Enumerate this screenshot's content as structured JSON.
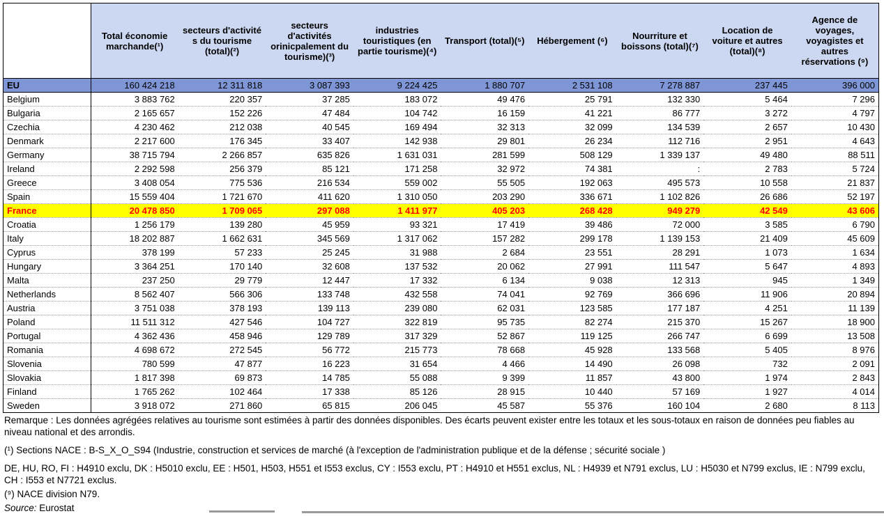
{
  "colors": {
    "header_bg": "#ccd8f1",
    "eu_row_bg": "#7e96d6",
    "highlight_bg": "#ffff00",
    "highlight_text": "#ff0000",
    "table_border": "#000000",
    "row_separator": "#9a9a9a",
    "bottom_bar": "#9a9a9a"
  },
  "table": {
    "corner_label": "",
    "columns": [
      "Total économie marchande(¹)",
      "secteurs d'activité s du tourisme (total)(²)",
      "secteurs d'activités orinicpalement du tourisme)(³)",
      "industries touristiques (en partie tourisme)(⁴)",
      "Transport (total)(⁵)",
      "Hébergement (⁶)",
      "Nourriture et boissons (total)(⁷)",
      "Location de voiture et autres (total)(⁸)",
      "Agence de voyages, voyagistes et autres réservations (⁹)"
    ],
    "rows": [
      {
        "name": "EU",
        "style": "eu",
        "values": [
          "160 424 218",
          "12 311 818",
          "3 087 393",
          "9 224 425",
          "1 880 707",
          "2 531 108",
          "7 278 887",
          "237 445",
          "396 000"
        ]
      },
      {
        "name": "Belgium",
        "values": [
          "3 883 762",
          "220 357",
          "37 285",
          "183 072",
          "49 476",
          "25 791",
          "132 330",
          "5 464",
          "7 296"
        ]
      },
      {
        "name": "Bulgaria",
        "values": [
          "2 165 657",
          "152 226",
          "47 484",
          "104 742",
          "16 159",
          "41 221",
          "86 777",
          "3 272",
          "4 797"
        ]
      },
      {
        "name": "Czechia",
        "values": [
          "4 230 462",
          "212 038",
          "40 545",
          "169 494",
          "32 313",
          "32 099",
          "134 539",
          "2 657",
          "10 430"
        ]
      },
      {
        "name": "Denmark",
        "values": [
          "2 217 600",
          "176 345",
          "33 407",
          "142 938",
          "29 801",
          "26 234",
          "112 716",
          "2 951",
          "4 643"
        ]
      },
      {
        "name": "Germany",
        "values": [
          "38 715 794",
          "2 266 857",
          "635 826",
          "1 631 031",
          "281 599",
          "508 129",
          "1 339 137",
          "49 480",
          "88 511"
        ]
      },
      {
        "name": "Ireland",
        "values": [
          "2 292 598",
          "256 379",
          "85 121",
          "171 258",
          "32 972",
          "74 381",
          ":",
          "2 783",
          "5 724"
        ]
      },
      {
        "name": "Greece",
        "values": [
          "3 408 054",
          "775 536",
          "216 534",
          "559 002",
          "55 505",
          "192 063",
          "495 573",
          "10 558",
          "21 837"
        ]
      },
      {
        "name": "Spain",
        "values": [
          "15 559 404",
          "1 721 670",
          "411 620",
          "1 310 050",
          "203 290",
          "336 671",
          "1 102 826",
          "26 686",
          "52 197"
        ]
      },
      {
        "name": "France",
        "style": "highlight",
        "values": [
          "20 478 850",
          "1 709 065",
          "297 088",
          "1 411 977",
          "405 203",
          "268 428",
          "949 279",
          "42 549",
          "43 606"
        ]
      },
      {
        "name": "Croatia",
        "values": [
          "1 256 179",
          "139 280",
          "45 959",
          "93 321",
          "17 419",
          "39 486",
          "72 000",
          "3 585",
          "6 790"
        ]
      },
      {
        "name": "Italy",
        "values": [
          "18 202 887",
          "1 662 631",
          "345 569",
          "1 317 062",
          "157 282",
          "299 178",
          "1 139 153",
          "21 409",
          "45 609"
        ]
      },
      {
        "name": "Cyprus",
        "values": [
          "378 199",
          "57 233",
          "25 245",
          "31 988",
          "2 684",
          "23 551",
          "28 291",
          "1 073",
          "1 634"
        ]
      },
      {
        "name": "Hungary",
        "values": [
          "3 364 251",
          "170 140",
          "32 608",
          "137 532",
          "20 062",
          "27 991",
          "111 547",
          "5 647",
          "4 893"
        ]
      },
      {
        "name": "Malta",
        "values": [
          "237 250",
          "29 779",
          "12 447",
          "17 332",
          "6 134",
          "9 038",
          "12 313",
          "945",
          "1 349"
        ]
      },
      {
        "name": "Netherlands",
        "values": [
          "8 562 407",
          "566 306",
          "133 748",
          "432 558",
          "74 041",
          "92 769",
          "366 696",
          "11 906",
          "20 894"
        ]
      },
      {
        "name": "Austria",
        "values": [
          "3 751 038",
          "378 193",
          "139 113",
          "239 080",
          "62 031",
          "123 585",
          "177 187",
          "4 251",
          "11 139"
        ]
      },
      {
        "name": "Poland",
        "values": [
          "11 511 312",
          "427 546",
          "104 727",
          "322 819",
          "95 735",
          "82 274",
          "215 370",
          "15 267",
          "18 900"
        ]
      },
      {
        "name": "Portugal",
        "values": [
          "4 362 436",
          "458 946",
          "129 789",
          "317 329",
          "52 867",
          "119 125",
          "266 747",
          "6 699",
          "13 508"
        ]
      },
      {
        "name": "Romania",
        "values": [
          "4 698 672",
          "272 545",
          "56 772",
          "215 773",
          "78 668",
          "45 928",
          "133 568",
          "5 405",
          "8 976"
        ]
      },
      {
        "name": "Slovenia",
        "values": [
          "780 599",
          "47 877",
          "16 223",
          "31 654",
          "4 466",
          "14 490",
          "26 098",
          "732",
          "2 091"
        ]
      },
      {
        "name": "Slovakia",
        "values": [
          "1 817 398",
          "69 873",
          "14 785",
          "55 088",
          "9 399",
          "11 857",
          "43 800",
          "1 974",
          "2 843"
        ]
      },
      {
        "name": "Finland",
        "values": [
          "1 765 262",
          "102 464",
          "17 338",
          "85 126",
          "28 915",
          "10 440",
          "57 169",
          "1 927",
          "4 014"
        ]
      },
      {
        "name": "Sweden",
        "values": [
          "3 918 072",
          "271 860",
          "65 815",
          "206 045",
          "45 587",
          "55 376",
          "160 104",
          "2 680",
          "8 113"
        ]
      }
    ]
  },
  "footnotes": {
    "remark": "Remarque : Les données agrégées relatives au tourisme sont estimées à partir des données disponibles. Des écarts peuvent exister entre les totaux et les sous-totaux en raison de données peu fiables au niveau national et des arrondis.",
    "note1": "(¹) Sections NACE : B-S_X_O_S94 (Industrie, construction et services de marché (à l'exception de l'administration publique et de la défense ; sécurité sociale )",
    "note_codes": "DE, HU, RO, FI : H4910 exclu, DK : H5010 exclu, EE : H501, H503, H551 et I553 exclus, CY : I553 exclu, PT : H4910 et H551 exclus, NL : H4939 et N791 exclus, LU : H5030 et N799 exclus, IE : N799 exclu, CH : I553 et N7721 exclus.",
    "note9": "(⁹) NACE division N79.",
    "source_label": "Source:",
    "source_value": " Eurostat"
  }
}
